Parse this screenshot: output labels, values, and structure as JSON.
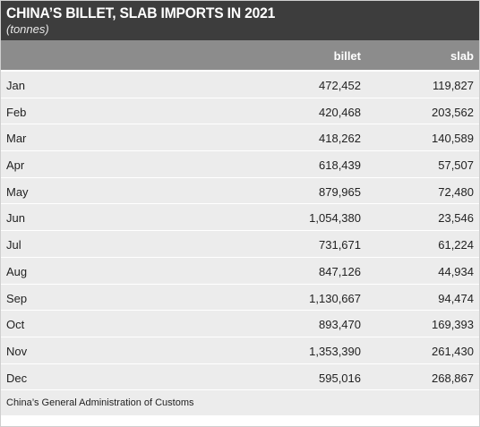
{
  "header": {
    "title": "CHINA’S BILLET, SLAB IMPORTS IN 2021",
    "subtitle": "(tonnes)"
  },
  "columns": {
    "billet": "billet",
    "slab": "slab"
  },
  "rows": [
    {
      "month": "Jan",
      "billet": "472,452",
      "slab": "119,827"
    },
    {
      "month": "Feb",
      "billet": "420,468",
      "slab": "203,562"
    },
    {
      "month": "Mar",
      "billet": "418,262",
      "slab": "140,589"
    },
    {
      "month": "Apr",
      "billet": "618,439",
      "slab": "57,507"
    },
    {
      "month": "May",
      "billet": "879,965",
      "slab": "72,480"
    },
    {
      "month": "Jun",
      "billet": "1,054,380",
      "slab": "23,546"
    },
    {
      "month": "Jul",
      "billet": "731,671",
      "slab": "61,224"
    },
    {
      "month": "Aug",
      "billet": "847,126",
      "slab": "44,934"
    },
    {
      "month": "Sep",
      "billet": "1,130,667",
      "slab": "94,474"
    },
    {
      "month": "Oct",
      "billet": "893,470",
      "slab": "169,393"
    },
    {
      "month": "Nov",
      "billet": "1,353,390",
      "slab": "261,430"
    },
    {
      "month": "Dec",
      "billet": "595,016",
      "slab": "268,867"
    }
  ],
  "source": "China’s General Administration of Customs"
}
